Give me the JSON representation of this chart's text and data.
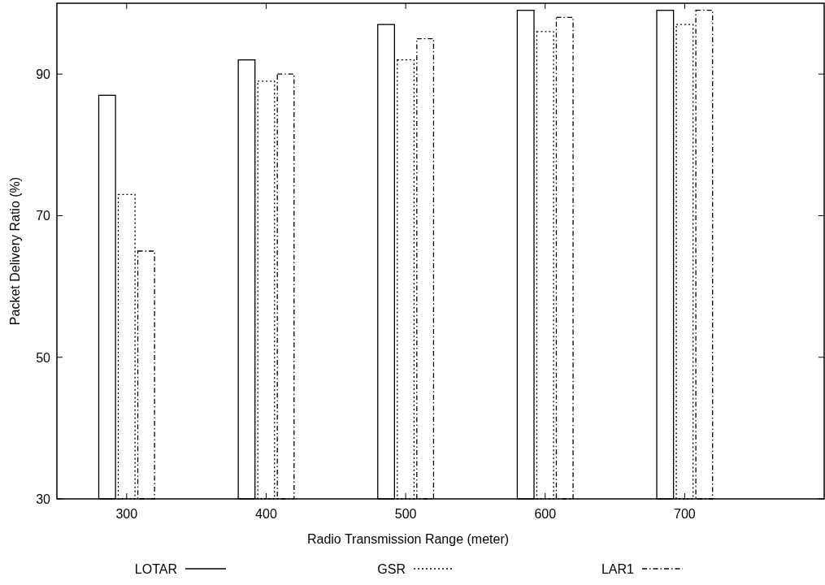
{
  "chart_data": {
    "type": "bar",
    "xlabel": "Radio Transmission Range (meter)",
    "ylabel": "Packet Delivery Ratio (%)",
    "x": [
      300,
      400,
      500,
      600,
      700
    ],
    "xlim": [
      250,
      800
    ],
    "xticks": [
      300,
      400,
      500,
      600,
      700
    ],
    "ylim": [
      30,
      100
    ],
    "yticks": [
      30,
      50,
      70,
      90
    ],
    "series": [
      {
        "name": "LOTAR",
        "color": "#000000",
        "line_style": "solid",
        "values": [
          87,
          92,
          97,
          99,
          99
        ]
      },
      {
        "name": "GSR",
        "color": "#000000",
        "line_style": "dotted",
        "values": [
          73,
          89,
          92,
          96,
          97
        ]
      },
      {
        "name": "LAR1",
        "color": "#000000",
        "line_style": "dashed",
        "values": [
          65,
          90,
          95,
          98,
          99
        ]
      }
    ],
    "legend": "bottom",
    "grid": false
  }
}
